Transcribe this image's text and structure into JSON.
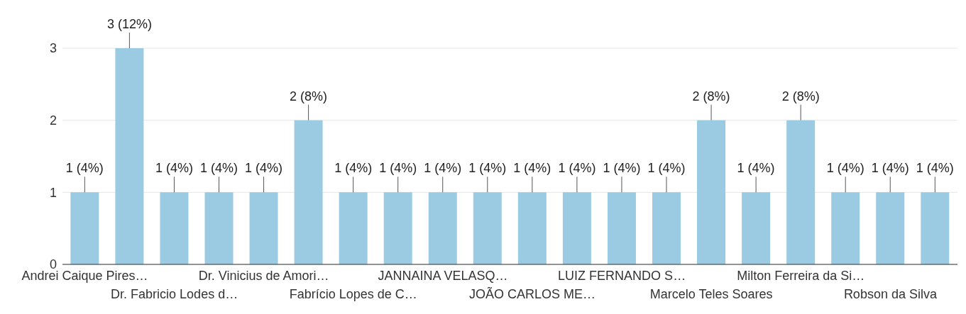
{
  "chart_data": {
    "type": "bar",
    "categories": [
      "Andrei Caique Pires…",
      null,
      "Dr. Fabricio Lodes d…",
      null,
      "Dr. Vinicius de Amori…",
      null,
      "Fabrício Lopes de C…",
      null,
      "JANNAINA VELASQ…",
      null,
      "JOÃO CARLOS ME…",
      null,
      "LUIZ FERNANDO S…",
      null,
      "Marcelo Teles Soares",
      null,
      "Milton Ferreira da Si…",
      null,
      "Robson da Silva",
      null
    ],
    "values": [
      1,
      3,
      1,
      1,
      1,
      2,
      1,
      1,
      1,
      1,
      1,
      1,
      1,
      1,
      2,
      1,
      2,
      1,
      1,
      1
    ],
    "value_labels": [
      "1 (4%)",
      "3 (12%)",
      "1 (4%)",
      "1 (4%)",
      "1 (4%)",
      "2 (8%)",
      "1 (4%)",
      "1 (4%)",
      "1 (4%)",
      "1 (4%)",
      "1 (4%)",
      "1 (4%)",
      "1 (4%)",
      "1 (4%)",
      "2 (8%)",
      "1 (4%)",
      "2 (8%)",
      "1 (4%)",
      "1 (4%)",
      "1 (4%)"
    ],
    "color": "#9acbe3",
    "ylim": [
      0,
      3
    ],
    "yticks": [
      0,
      1,
      2,
      3
    ],
    "grid": "y"
  }
}
